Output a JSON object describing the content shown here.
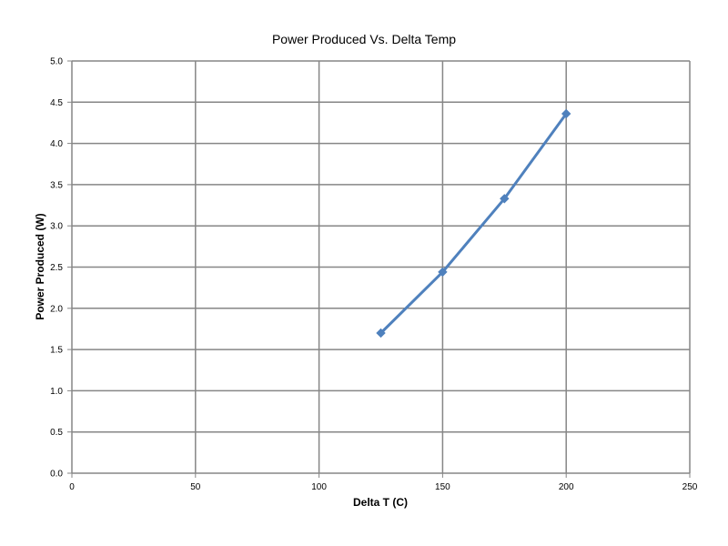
{
  "chart_data": {
    "type": "line",
    "title": "Power Produced Vs. Delta Temp",
    "xlabel": "Delta T (C)",
    "ylabel": "Power Produced (W)",
    "xlim": [
      0,
      250
    ],
    "ylim": [
      0,
      5
    ],
    "x_ticks": [
      "0",
      "50",
      "100",
      "150",
      "200",
      "250"
    ],
    "y_ticks": [
      "0.0",
      "0.5",
      "1.0",
      "1.5",
      "2.0",
      "2.5",
      "3.0",
      "3.5",
      "4.0",
      "4.5",
      "5.0"
    ],
    "grid": true,
    "legend": "none",
    "series": [
      {
        "x": [
          125,
          150,
          175,
          200
        ],
        "values": [
          1.7,
          2.44,
          3.33,
          4.36
        ],
        "color": "#4F81BD",
        "marker": "diamond"
      }
    ]
  }
}
